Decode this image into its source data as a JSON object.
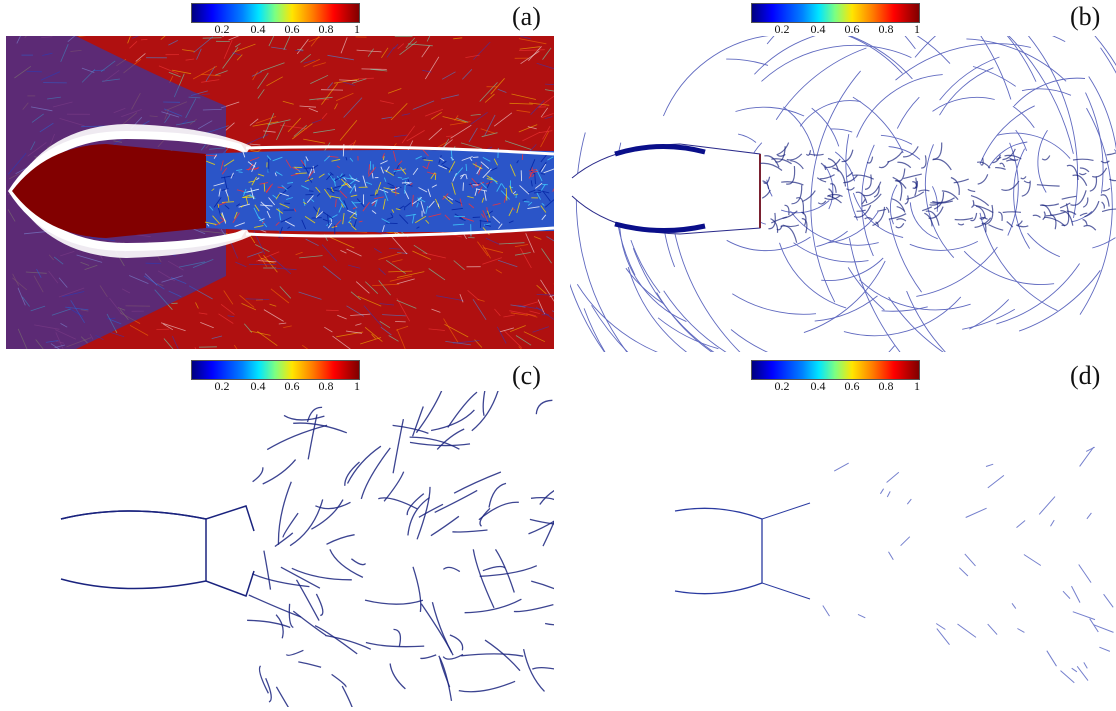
{
  "colorbar": {
    "ticks": [
      "0.2",
      "0.4",
      "0.6",
      "0.8",
      "1"
    ],
    "colors": [
      "#00007f",
      "#0000ff",
      "#0080ff",
      "#00e5ff",
      "#7fff7f",
      "#ffe500",
      "#ff7f00",
      "#ff0000",
      "#7f0000"
    ]
  },
  "panels": [
    {
      "label": "(a)",
      "style": "dense-red-background"
    },
    {
      "label": "(b)",
      "style": "blue-shock-lines"
    },
    {
      "label": "(c)",
      "style": "sparse-blue-lines"
    },
    {
      "label": "(d)",
      "style": "very-sparse-blue-lines"
    }
  ],
  "accent": {
    "red": "#b00000",
    "blue": "#1a237e",
    "mid_blue": "#2233aa"
  }
}
